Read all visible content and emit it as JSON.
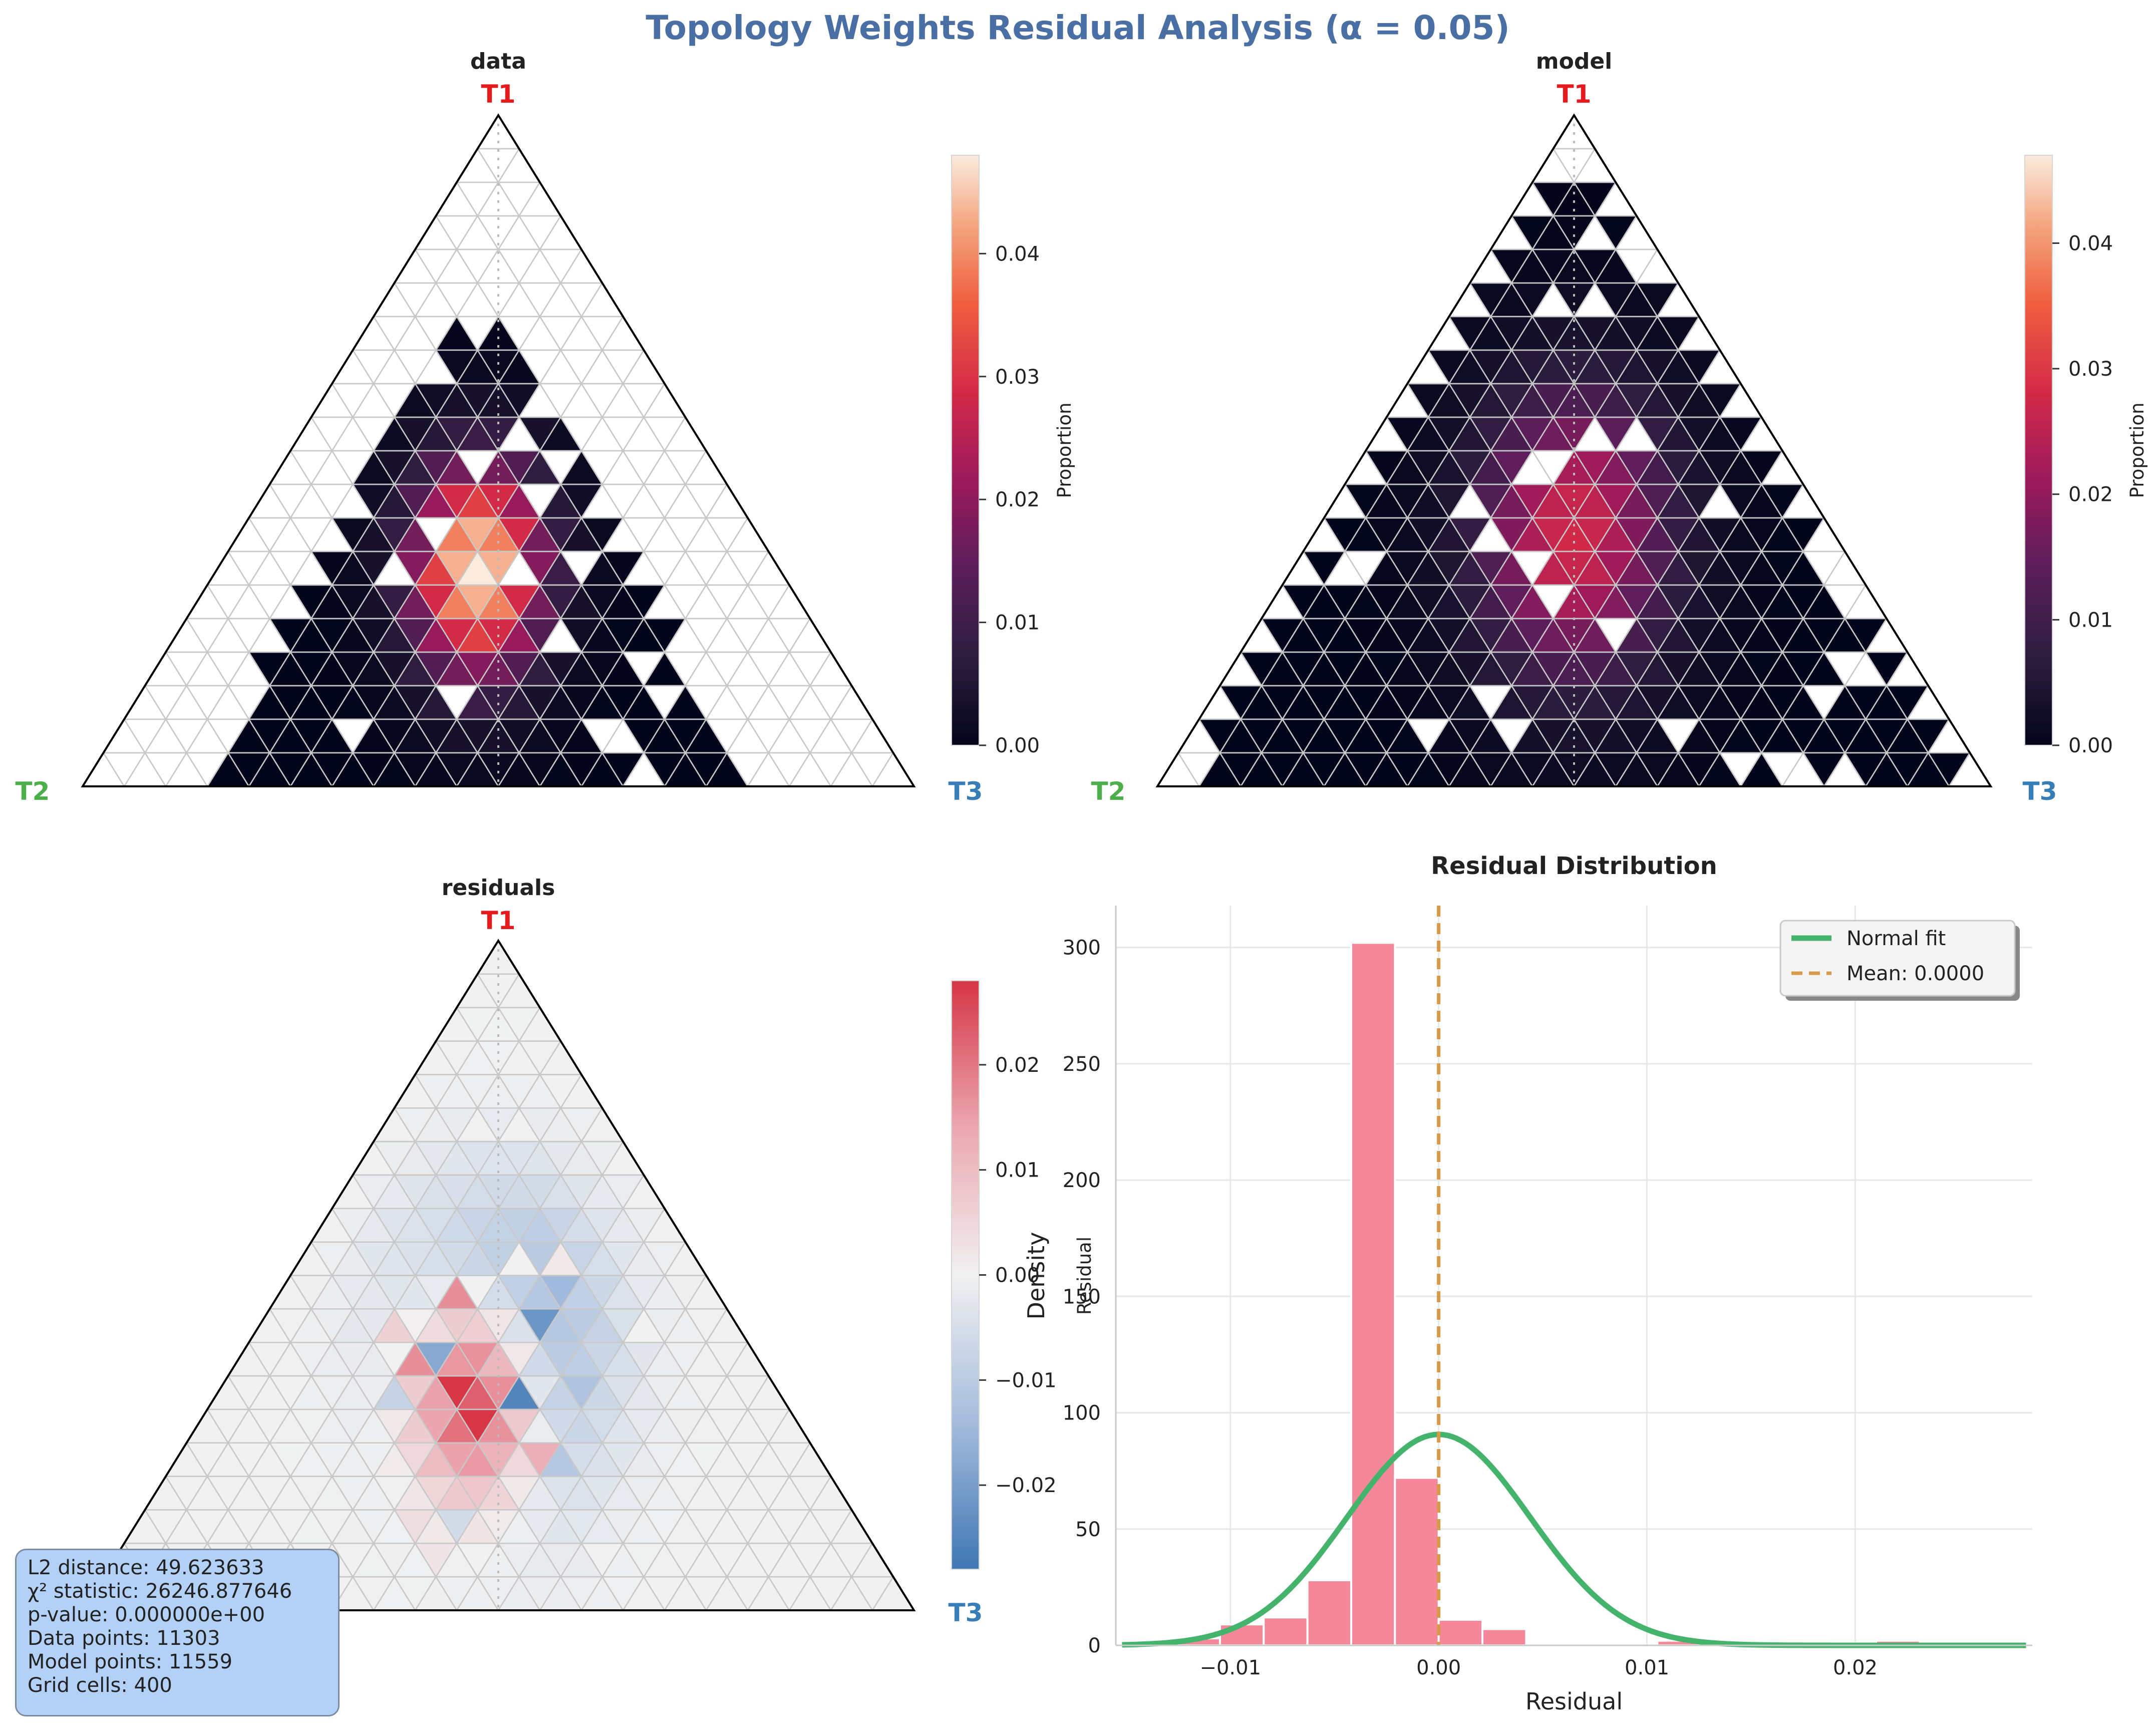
{
  "figure": {
    "title": "Topology Weights Residual Analysis (α = 0.05)",
    "title_color": "#4a6fa5",
    "vertex_colors": {
      "T1": "#e41a1c",
      "T2": "#4daf4a",
      "T3": "#377eb8"
    }
  },
  "chart_data": [
    {
      "type": "heatmap",
      "title": "data",
      "vertex_labels": [
        "T1",
        "T2",
        "T3"
      ],
      "grid_cells": 400,
      "colorbar": {
        "label": "Proportion",
        "range": [
          0,
          0.048
        ],
        "ticks": [
          "0.00",
          "0.01",
          "0.02",
          "0.03",
          "0.04"
        ],
        "colormap": "rocket"
      },
      "center": {
        "row": 13,
        "b": 6
      },
      "spread": {
        "row": 2.2,
        "b": 1.1
      },
      "extent": {
        "row_min": 6,
        "row_max": 19
      },
      "peak": 0.048
    },
    {
      "type": "heatmap",
      "title": "model",
      "vertex_labels": [
        "T1",
        "T2",
        "T3"
      ],
      "grid_cells": 400,
      "colorbar": {
        "label": "Proportion",
        "range": [
          0,
          0.047
        ],
        "ticks": [
          "0.00",
          "0.01",
          "0.02",
          "0.03",
          "0.04"
        ],
        "colormap": "rocket"
      },
      "center": {
        "row": 12,
        "b": 6
      },
      "spread": {
        "row": 3.0,
        "b": 1.6
      },
      "extent": {
        "row_min": 2,
        "row_max": 19
      },
      "peak": 0.028
    },
    {
      "type": "heatmap",
      "title": "residuals",
      "vertex_labels": [
        "T1",
        "T2",
        "T3"
      ],
      "grid_cells": 400,
      "colorbar": {
        "label": "Residual",
        "range": [
          -0.028,
          0.028
        ],
        "ticks": [
          "−0.02",
          "−0.01",
          "0.00",
          "0.01",
          "0.02"
        ],
        "colormap": "coolwarm"
      }
    },
    {
      "type": "bar",
      "title": "Residual Distribution",
      "xlabel": "Residual",
      "ylabel": "Density",
      "xlim": [
        -0.0155,
        0.0285
      ],
      "ylim": [
        0,
        318
      ],
      "xticks": [
        -0.01,
        0.0,
        0.01,
        0.02
      ],
      "xtick_labels": [
        "−0.01",
        "0.00",
        "0.01",
        "0.02"
      ],
      "yticks": [
        0,
        50,
        100,
        150,
        200,
        250,
        300
      ],
      "bin_width": 0.0021,
      "bins": [
        {
          "left": -0.0126,
          "density": 3
        },
        {
          "left": -0.0105,
          "density": 9
        },
        {
          "left": -0.0084,
          "density": 12
        },
        {
          "left": -0.0063,
          "density": 28
        },
        {
          "left": -0.0042,
          "density": 302
        },
        {
          "left": -0.0021,
          "density": 72
        },
        {
          "left": 0.0,
          "density": 11
        },
        {
          "left": 0.0021,
          "density": 7
        },
        {
          "left": 0.0042,
          "density": 0
        },
        {
          "left": 0.0063,
          "density": 0
        },
        {
          "left": 0.0084,
          "density": 0
        },
        {
          "left": 0.0105,
          "density": 2
        },
        {
          "left": 0.0126,
          "density": 0
        },
        {
          "left": 0.0147,
          "density": 1
        },
        {
          "left": 0.0168,
          "density": 0
        },
        {
          "left": 0.0189,
          "density": 1
        },
        {
          "left": 0.021,
          "density": 2
        }
      ],
      "normal_fit": {
        "mean": 0.0,
        "sd": 0.0044,
        "x_range": [
          -0.0152,
          0.0282
        ]
      },
      "series": [
        {
          "name": "Normal fit",
          "color": "#44b36b"
        },
        {
          "name": "Mean: 0.0000",
          "color": "#d79a48"
        }
      ],
      "bar_color": "#f4879a",
      "legend_position": "top-right",
      "grid": true
    }
  ],
  "stats": {
    "lines": [
      "L2 distance: 49.623633",
      "χ² statistic: 26246.877646",
      "p-value: 0.000000e+00",
      "Data points: 11303",
      "Model points: 11559",
      "Grid cells: 400"
    ]
  }
}
